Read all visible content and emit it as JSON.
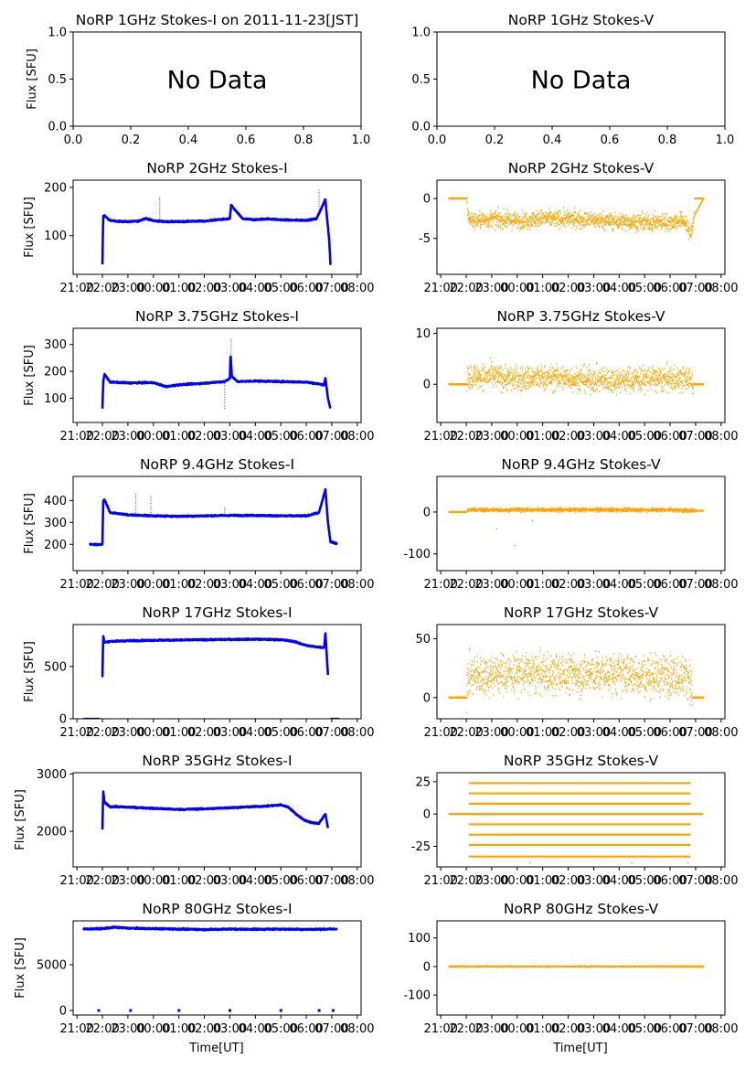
{
  "figure": {
    "xlabel": "Time[UT]",
    "ylabel": "Flux [SFU]",
    "time_ticks": [
      "21:00",
      "22:00",
      "23:00",
      "00:00",
      "01:00",
      "02:00",
      "03:00",
      "04:00",
      "05:00",
      "06:00",
      "07:00",
      "08:00"
    ],
    "colors": {
      "stokes_i": "#0000ff",
      "stokes_v": "#ffa500",
      "axis": "#000000"
    }
  },
  "chart_data": [
    {
      "id": "i1",
      "type": "scatter",
      "title": "NoRP 1GHz Stokes-I on 2011-11-23[JST]",
      "ylabel": "Flux [SFU]",
      "no_data": true,
      "placeholder": "No Data",
      "xlim": [
        0,
        1
      ],
      "ylim": [
        0,
        1
      ],
      "xticks": [
        "0.0",
        "0.2",
        "0.4",
        "0.6",
        "0.8",
        "1.0"
      ],
      "yticks": [
        "0.0",
        "0.5",
        "1.0"
      ]
    },
    {
      "id": "v1",
      "type": "scatter",
      "title": "NoRP 1GHz Stokes-V",
      "no_data": true,
      "placeholder": "No Data",
      "xlim": [
        0,
        1
      ],
      "ylim": [
        0,
        1
      ],
      "xticks": [
        "0.0",
        "0.2",
        "0.4",
        "0.6",
        "0.8",
        "1.0"
      ],
      "yticks": [
        "0.0",
        "0.5",
        "1.0"
      ]
    },
    {
      "id": "i2",
      "type": "scatter",
      "title": "NoRP 2GHz Stokes-I",
      "ylabel": "Flux [SFU]",
      "ylim": [
        20,
        215
      ],
      "yticks": [
        100,
        200
      ],
      "series": {
        "name": "Stokes-I",
        "x": [
          22.0,
          22.03,
          22.08,
          22.25,
          22.5,
          23.0,
          23.4,
          23.7,
          24.0,
          24.5,
          25.0,
          25.5,
          26.0,
          26.5,
          27.0,
          27.05,
          27.5,
          28.0,
          28.5,
          29.0,
          29.5,
          30.0,
          30.4,
          30.75,
          30.8,
          30.9,
          30.95
        ],
        "y": [
          40,
          140,
          142,
          133,
          130,
          129,
          130,
          136,
          131,
          129,
          129,
          130,
          130,
          133,
          135,
          163,
          135,
          133,
          135,
          133,
          132,
          132,
          135,
          175,
          145,
          90,
          40
        ],
        "outliers": [
          [
            24.25,
            180
          ],
          [
            30.5,
            195
          ]
        ]
      }
    },
    {
      "id": "v2",
      "type": "scatter",
      "title": "NoRP 2GHz Stokes-V",
      "ylim": [
        -9.5,
        2.3
      ],
      "yticks": [
        -5,
        0
      ],
      "series": {
        "name": "Stokes-V",
        "x": [
          21.3,
          22.0,
          22.05,
          22.25,
          23.0,
          24.0,
          25.0,
          26.0,
          27.0,
          28.0,
          29.0,
          30.0,
          30.5,
          30.8,
          30.95,
          31.3
        ],
        "y": [
          0,
          0,
          -2.2,
          -2.8,
          -2.6,
          -2.8,
          -2.5,
          -2.6,
          -2.7,
          -2.9,
          -3.0,
          -3.0,
          -2.7,
          -4.5,
          -2.0,
          0
        ],
        "spread": 1.1
      }
    },
    {
      "id": "i3",
      "type": "scatter",
      "title": "NoRP 3.75GHz Stokes-I",
      "ylabel": "Flux [SFU]",
      "ylim": [
        10,
        360
      ],
      "yticks": [
        100,
        200,
        300
      ],
      "series": {
        "name": "Stokes-I",
        "x": [
          22.0,
          22.03,
          22.08,
          22.3,
          23.0,
          24.0,
          24.5,
          25.0,
          26.0,
          26.8,
          27.0,
          27.03,
          27.08,
          27.3,
          28.0,
          29.0,
          30.0,
          30.7,
          30.75,
          30.85,
          30.95
        ],
        "y": [
          60,
          160,
          190,
          160,
          157,
          158,
          143,
          150,
          156,
          162,
          175,
          260,
          180,
          162,
          164,
          162,
          160,
          150,
          175,
          100,
          60
        ],
        "outliers": [
          [
            26.8,
            60
          ],
          [
            27.05,
            320
          ]
        ]
      }
    },
    {
      "id": "v3",
      "type": "scatter",
      "title": "NoRP 3.75GHz Stokes-V",
      "ylim": [
        -7.5,
        11
      ],
      "yticks": [
        0,
        10
      ],
      "series": {
        "name": "Stokes-V",
        "x": [
          21.3,
          22.0,
          22.05,
          23.0,
          24.0,
          25.0,
          26.0,
          27.0,
          28.0,
          29.0,
          30.0,
          30.8,
          30.9,
          31.3
        ],
        "y": [
          0,
          0,
          1.5,
          1.5,
          1.0,
          1.3,
          1.2,
          0.8,
          0.9,
          1.1,
          1.0,
          1.0,
          0,
          0
        ],
        "spread": 2.6
      }
    },
    {
      "id": "i4",
      "type": "scatter",
      "title": "NoRP 9.4GHz Stokes-I",
      "ylabel": "Flux [SFU]",
      "ylim": [
        80,
        510
      ],
      "yticks": [
        200,
        300,
        400
      ],
      "series": {
        "name": "Stokes-I",
        "x": [
          21.5,
          21.9,
          22.0,
          22.03,
          22.08,
          22.3,
          23.0,
          24.0,
          25.0,
          26.0,
          27.0,
          28.0,
          29.0,
          30.0,
          30.5,
          30.75,
          30.85,
          30.95,
          31.2
        ],
        "y": [
          200,
          200,
          200,
          395,
          405,
          345,
          335,
          330,
          328,
          330,
          332,
          332,
          330,
          330,
          345,
          450,
          300,
          210,
          205
        ],
        "outliers": [
          [
            23.3,
            430
          ],
          [
            23.9,
            420
          ],
          [
            26.8,
            370
          ]
        ]
      }
    },
    {
      "id": "v4",
      "type": "scatter",
      "title": "NoRP 9.4GHz Stokes-V",
      "ylim": [
        -140,
        85
      ],
      "yticks": [
        -100,
        0
      ],
      "series": {
        "name": "Stokes-V",
        "x": [
          21.3,
          22.0,
          22.05,
          23.0,
          24.0,
          25.0,
          26.0,
          27.0,
          28.0,
          29.0,
          30.0,
          31.0,
          31.3
        ],
        "y": [
          0,
          0,
          5,
          5,
          5,
          5,
          5,
          5,
          5,
          5,
          5,
          3,
          3
        ],
        "spread": 5,
        "outliers": [
          [
            23.2,
            -40
          ],
          [
            23.9,
            -80
          ],
          [
            24.6,
            -20
          ]
        ]
      }
    },
    {
      "id": "i5",
      "type": "scatter",
      "title": "NoRP 17GHz Stokes-I",
      "ylabel": "Flux [SFU]",
      "ylim": [
        0,
        900
      ],
      "yticks": [
        0,
        500
      ],
      "series": {
        "name": "Stokes-I",
        "x": [
          22.0,
          22.03,
          22.08,
          22.3,
          23.0,
          24.0,
          25.0,
          26.0,
          27.0,
          28.0,
          29.0,
          29.5,
          30.0,
          30.3,
          30.7,
          30.75,
          30.85
        ],
        "y": [
          400,
          790,
          730,
          740,
          745,
          750,
          752,
          755,
          758,
          760,
          755,
          740,
          700,
          690,
          680,
          820,
          420
        ],
        "zero_segments": [
          [
            21.25,
            21.9
          ],
          [
            30.95,
            31.3
          ]
        ]
      }
    },
    {
      "id": "v5",
      "type": "scatter",
      "title": "NoRP 17GHz Stokes-V",
      "ylim": [
        -18,
        62
      ],
      "yticks": [
        0,
        50
      ],
      "series": {
        "name": "Stokes-V",
        "x": [
          21.3,
          22.0,
          22.05,
          23.0,
          24.0,
          25.0,
          26.0,
          27.0,
          28.0,
          29.0,
          30.0,
          30.75,
          30.85,
          31.3
        ],
        "y": [
          0,
          0,
          18,
          20,
          21,
          20,
          20,
          20,
          20,
          19,
          19,
          18,
          0,
          0
        ],
        "spread": 18
      }
    },
    {
      "id": "i6",
      "type": "scatter",
      "title": "NoRP 35GHz Stokes-I",
      "ylabel": "Flux [SFU]",
      "ylim": [
        1380,
        3020
      ],
      "yticks": [
        2000,
        3000
      ],
      "series": {
        "name": "Stokes-I",
        "x": [
          22.0,
          22.03,
          22.08,
          22.3,
          23.0,
          24.0,
          25.0,
          26.0,
          27.0,
          28.0,
          28.5,
          29.0,
          29.3,
          29.6,
          29.9,
          30.2,
          30.5,
          30.75,
          30.85
        ],
        "y": [
          2030,
          2700,
          2500,
          2430,
          2420,
          2400,
          2380,
          2390,
          2410,
          2430,
          2440,
          2460,
          2420,
          2300,
          2200,
          2150,
          2140,
          2300,
          2060
        ]
      }
    },
    {
      "id": "v6",
      "type": "scatter",
      "title": "NoRP 35GHz Stokes-V",
      "ylim": [
        -41,
        32
      ],
      "yticks": [
        -25,
        0,
        25
      ],
      "series": {
        "name": "Stokes-V",
        "levels": [
          24,
          16,
          8,
          0,
          -8,
          -16,
          -24,
          -33
        ],
        "x_start": 22.1,
        "x_end": 30.8,
        "zero_line": [
          21.3,
          31.3
        ],
        "outliers": [
          [
            24,
            24
          ],
          [
            26,
            24
          ],
          [
            28,
            24
          ],
          [
            24.5,
            -38
          ],
          [
            28.5,
            -38
          ],
          [
            30.7,
            -38
          ]
        ]
      }
    },
    {
      "id": "i7",
      "type": "scatter",
      "title": "NoRP 80GHz Stokes-I",
      "ylabel": "Flux [SFU]",
      "ylim": [
        -500,
        9800
      ],
      "yticks": [
        0,
        5000
      ],
      "series": {
        "name": "Stokes-I",
        "x": [
          21.25,
          22.0,
          22.5,
          23.0,
          24.0,
          25.0,
          26.0,
          27.0,
          28.0,
          29.0,
          30.0,
          30.5,
          31.2
        ],
        "y": [
          8900,
          8950,
          9100,
          9000,
          8950,
          8900,
          8850,
          8900,
          8880,
          8900,
          8870,
          8880,
          8900
        ],
        "zero_ticks": [
          21.8,
          23.05,
          24.95,
          26.95,
          28.95,
          30.45,
          31.0
        ]
      }
    },
    {
      "id": "v7",
      "type": "scatter",
      "title": "NoRP 80GHz Stokes-V",
      "ylim": [
        -170,
        160
      ],
      "yticks": [
        -100,
        0,
        100
      ],
      "series": {
        "name": "Stokes-V",
        "x": [
          21.3,
          22.0,
          23.0,
          24.0,
          25.0,
          26.0,
          27.0,
          28.0,
          29.0,
          30.0,
          31.3
        ],
        "y": [
          0,
          0,
          0,
          0,
          0,
          0,
          0,
          0,
          0,
          0,
          0
        ],
        "spread": 75
      }
    }
  ]
}
